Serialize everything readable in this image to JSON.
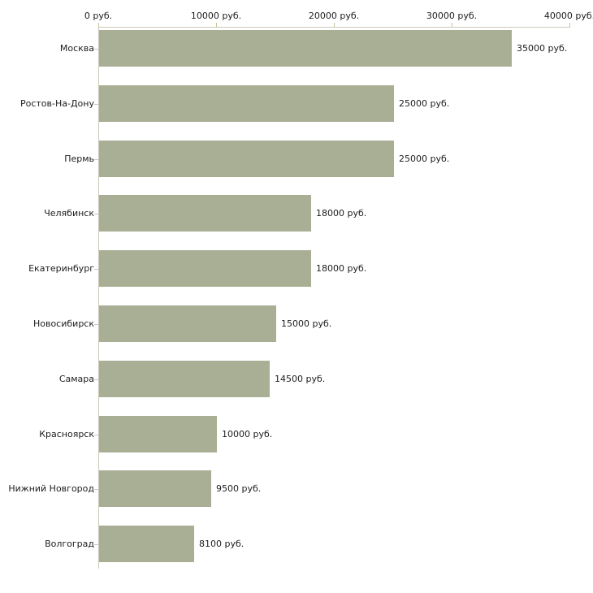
{
  "chart_data": {
    "type": "bar",
    "orientation": "horizontal",
    "categories": [
      "Москва",
      "Ростов-На-Дону",
      "Пермь",
      "Челябинск",
      "Екатеринбург",
      "Новосибирск",
      "Самара",
      "Красноярск",
      "Нижний Новгород",
      "Волгоград"
    ],
    "values": [
      35000,
      25000,
      25000,
      18000,
      18000,
      15000,
      14500,
      10000,
      9500,
      8100
    ],
    "value_labels": [
      "35000 руб.",
      "25000 руб.",
      "25000 руб.",
      "18000 руб.",
      "18000 руб.",
      "15000 руб.",
      "14500 руб.",
      "10000 руб.",
      "9500 руб.",
      "8100 руб."
    ],
    "title": "",
    "xlabel": "",
    "ylabel": "",
    "xlim": [
      0,
      40000
    ],
    "x_ticks": [
      0,
      10000,
      20000,
      30000,
      40000
    ],
    "x_tick_labels": [
      "0 руб.",
      "10000 руб.",
      "20000 руб.",
      "30000 руб.",
      "40000 руб."
    ],
    "axis_position": "top",
    "grid": false,
    "legend": "none",
    "colors": {
      "bar": "#a9af95",
      "axis_line": "#ccc9b8",
      "tick_mark": "#c9c596",
      "text": "#1c1c1c",
      "background": "#ffffff"
    }
  }
}
